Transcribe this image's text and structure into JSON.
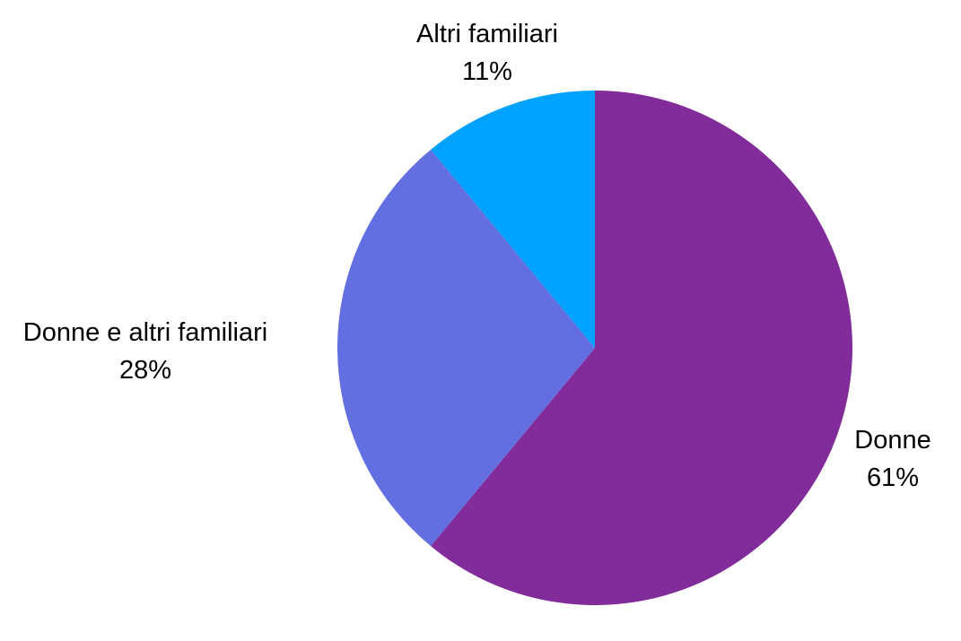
{
  "chart_data": {
    "type": "pie",
    "title": "",
    "start_angle_deg": 0,
    "direction": "clockwise",
    "slices": [
      {
        "name": "Donne",
        "value": 61,
        "value_label": "61%",
        "color": "#822B9A"
      },
      {
        "name": "Donne e altri familiari",
        "value": 28,
        "value_label": "28%",
        "color": "#636FE0"
      },
      {
        "name": "Altri familiari",
        "value": 11,
        "value_label": "11%",
        "color": "#00A2FF"
      }
    ]
  }
}
